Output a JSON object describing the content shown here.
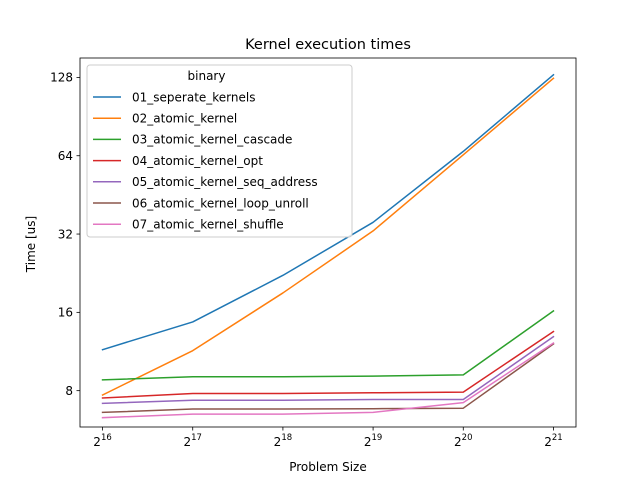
{
  "chart_data": {
    "type": "line",
    "title": "Kernel execution times",
    "xlabel": "Problem Size",
    "ylabel": "Time [us]",
    "x_scale": "log2",
    "y_scale": "log2",
    "x": [
      65536,
      131072,
      262144,
      524288,
      1048576,
      2097152
    ],
    "x_tick_labels": [
      {
        "base": "2",
        "exp": "16"
      },
      {
        "base": "2",
        "exp": "17"
      },
      {
        "base": "2",
        "exp": "18"
      },
      {
        "base": "2",
        "exp": "19"
      },
      {
        "base": "2",
        "exp": "20"
      },
      {
        "base": "2",
        "exp": "21"
      }
    ],
    "y_ticks": [
      8,
      16,
      32,
      64,
      128
    ],
    "y_tick_labels": [
      "8",
      "16",
      "32",
      "64",
      "128"
    ],
    "grid": false,
    "legend": {
      "title": "binary",
      "placement": "upper-left"
    },
    "series": [
      {
        "name": "01_seperate_kernels",
        "color": "#1f77b4",
        "values": [
          11.5,
          14.7,
          22.2,
          35.5,
          66.5,
          131
        ]
      },
      {
        "name": "02_atomic_kernel",
        "color": "#ff7f0e",
        "values": [
          7.7,
          11.4,
          19.0,
          32.9,
          64.5,
          127
        ]
      },
      {
        "name": "03_atomic_kernel_cascade",
        "color": "#2ca02c",
        "values": [
          8.8,
          9.05,
          9.05,
          9.1,
          9.2,
          16.2
        ]
      },
      {
        "name": "04_atomic_kernel_opt",
        "color": "#d62728",
        "values": [
          7.5,
          7.8,
          7.8,
          7.85,
          7.9,
          13.5
        ]
      },
      {
        "name": "05_atomic_kernel_seq_address",
        "color": "#9467bd",
        "values": [
          7.15,
          7.35,
          7.35,
          7.4,
          7.4,
          12.9
        ]
      },
      {
        "name": "06_atomic_kernel_loop_unroll",
        "color": "#8c564b",
        "values": [
          6.6,
          6.8,
          6.8,
          6.82,
          6.85,
          12.1
        ]
      },
      {
        "name": "07_atomic_kernel_shuffle",
        "color": "#e377c2",
        "values": [
          6.3,
          6.5,
          6.5,
          6.6,
          7.2,
          12.2
        ]
      }
    ]
  }
}
